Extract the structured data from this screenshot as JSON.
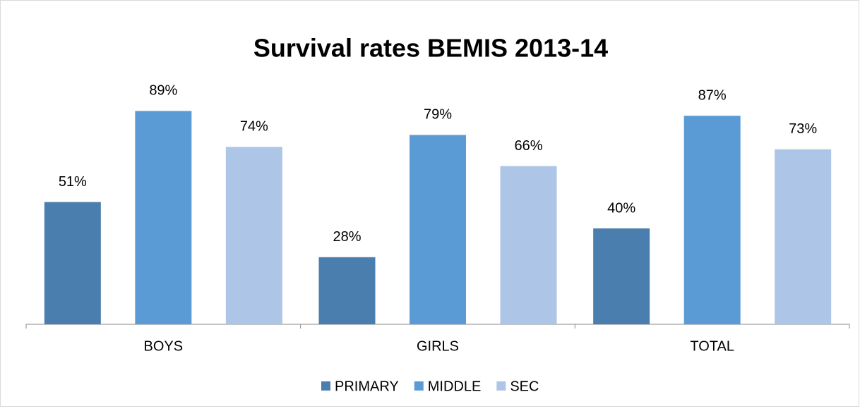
{
  "chart_data": {
    "type": "bar",
    "title": "Survival rates BEMIS 2013-14",
    "categories": [
      "BOYS",
      "GIRLS",
      "TOTAL"
    ],
    "series": [
      {
        "name": "PRIMARY",
        "color": "#4a7eae",
        "values": [
          51,
          28,
          40
        ],
        "value_labels": [
          "51%",
          "28%",
          "40%"
        ]
      },
      {
        "name": "MIDDLE",
        "color": "#5b9bd5",
        "values": [
          89,
          79,
          87
        ],
        "value_labels": [
          "89%",
          "79%",
          "87%"
        ]
      },
      {
        "name": "SEC",
        "color": "#adc5e6",
        "values": [
          74,
          66,
          73
        ],
        "value_labels": [
          "74%",
          "66%",
          "73%"
        ]
      }
    ],
    "legend": "bottom"
  }
}
